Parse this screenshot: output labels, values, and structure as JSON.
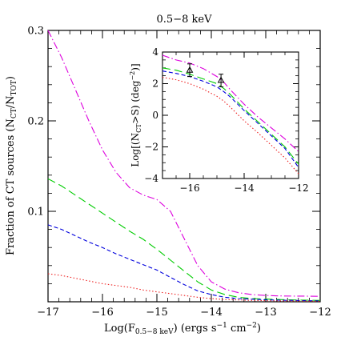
{
  "chart_data": [
    {
      "type": "line",
      "title": "0.5−8 keV",
      "xlabel_main": "Log(F",
      "xlabel_sub": "0.5−8 keV",
      "xlabel_units": ") (ergs s",
      "xlabel_sup1": "−1",
      "xlabel_cm": " cm",
      "xlabel_sup2": "−2",
      "xlabel_end": ")",
      "ylabel_main": "Fraction of CT sources (N",
      "ylabel_sub1": "CT",
      "ylabel_mid": "/N",
      "ylabel_sub2": "TOT",
      "ylabel_end": ")",
      "xlim": [
        -17,
        -12
      ],
      "ylim": [
        0,
        0.3
      ],
      "xticks": [
        -17,
        -16,
        -15,
        -14,
        -13,
        -12
      ],
      "xtick_labels": [
        "−17",
        "−16",
        "−15",
        "−14",
        "−13",
        "−12"
      ],
      "yticks": [
        0.1,
        0.2,
        0.3
      ],
      "ytick_labels": [
        "0.1",
        "0.2",
        "0.3"
      ],
      "series": [
        {
          "style": "dot-dash",
          "color": "#dd00dd",
          "x": [
            -17,
            -16.75,
            -16.5,
            -16.25,
            -16,
            -15.75,
            -15.5,
            -15.25,
            -15,
            -14.75,
            -14.5,
            -14.25,
            -14,
            -13.75,
            -13.5,
            -13.25,
            -13,
            -12.75,
            -12.5,
            -12.25,
            -12
          ],
          "y": [
            0.3,
            0.27,
            0.235,
            0.2,
            0.168,
            0.143,
            0.126,
            0.118,
            0.113,
            0.1,
            0.07,
            0.04,
            0.022,
            0.014,
            0.01,
            0.008,
            0.007,
            0.0065,
            0.0063,
            0.0062,
            0.006
          ]
        },
        {
          "style": "long-dash",
          "color": "#00cc00",
          "x": [
            -17,
            -16.75,
            -16.5,
            -16.25,
            -16,
            -15.75,
            -15.5,
            -15.25,
            -15,
            -14.75,
            -14.5,
            -14.25,
            -14,
            -13.75,
            -13.5,
            -13.25,
            -13,
            -12.75,
            -12.5,
            -12.25,
            -12
          ],
          "y": [
            0.136,
            0.128,
            0.118,
            0.108,
            0.098,
            0.088,
            0.078,
            0.069,
            0.058,
            0.046,
            0.034,
            0.022,
            0.013,
            0.008,
            0.005,
            0.0035,
            0.003,
            0.0025,
            0.002,
            0.0018,
            0.0015
          ]
        },
        {
          "style": "short-dash",
          "color": "#0000dd",
          "x": [
            -17,
            -16.75,
            -16.5,
            -16.25,
            -16,
            -15.75,
            -15.5,
            -15.25,
            -15,
            -14.75,
            -14.5,
            -14.25,
            -14,
            -13.75,
            -13.5,
            -13.25,
            -13,
            -12.75,
            -12.5,
            -12.25,
            -12
          ],
          "y": [
            0.085,
            0.08,
            0.073,
            0.066,
            0.06,
            0.053,
            0.047,
            0.041,
            0.035,
            0.027,
            0.019,
            0.012,
            0.008,
            0.005,
            0.0035,
            0.0028,
            0.0022,
            0.0018,
            0.0015,
            0.0012,
            0.001
          ]
        },
        {
          "style": "dotted",
          "color": "#ee2222",
          "x": [
            -17,
            -16.75,
            -16.5,
            -16.25,
            -16,
            -15.75,
            -15.5,
            -15.25,
            -15,
            -14.75,
            -14.5,
            -14.25,
            -14,
            -13.75,
            -13.5,
            -13.25,
            -13,
            -12.75,
            -12.5,
            -12.25,
            -12
          ],
          "y": [
            0.031,
            0.029,
            0.026,
            0.023,
            0.02,
            0.018,
            0.016,
            0.013,
            0.011,
            0.009,
            0.007,
            0.005,
            0.0035,
            0.0025,
            0.002,
            0.0015,
            0.0012,
            0.001,
            0.0008,
            0.0007,
            0.0006
          ]
        }
      ]
    },
    {
      "type": "line",
      "ylabel_main": "Log[(N",
      "ylabel_sub": "CT",
      "ylabel_mid": ">S) (deg",
      "ylabel_sup": "−2",
      "ylabel_end": ")]",
      "xlim": [
        -17,
        -12
      ],
      "ylim": [
        -4,
        4
      ],
      "xticks": [
        -16,
        -14,
        -12
      ],
      "xtick_labels": [
        "−16",
        "−14",
        "−12"
      ],
      "yticks": [
        -4,
        -2,
        0,
        2,
        4
      ],
      "ytick_labels": [
        "−4",
        "−2",
        "0",
        "2",
        "4"
      ],
      "series": [
        {
          "style": "dot-dash",
          "color": "#dd00dd",
          "x": [
            -17,
            -16.5,
            -16,
            -15.5,
            -15,
            -14.75,
            -14.5,
            -14,
            -13.5,
            -13,
            -12.5,
            -12
          ],
          "y": [
            3.8,
            3.5,
            3.3,
            2.95,
            2.45,
            2.1,
            1.6,
            0.7,
            -0.1,
            -0.8,
            -1.5,
            -2.3
          ]
        },
        {
          "style": "long-dash",
          "color": "#00cc00",
          "x": [
            -17,
            -16.5,
            -16,
            -15.5,
            -15,
            -14.75,
            -14.5,
            -14,
            -13.5,
            -13,
            -12.5,
            -12
          ],
          "y": [
            3.0,
            2.85,
            2.6,
            2.3,
            2.0,
            1.7,
            1.3,
            0.4,
            -0.4,
            -1.2,
            -2.0,
            -3.1
          ]
        },
        {
          "style": "short-dash",
          "color": "#0000dd",
          "x": [
            -17,
            -16.5,
            -16,
            -15.5,
            -15,
            -14.75,
            -14.5,
            -14,
            -13.5,
            -13,
            -12.5,
            -12
          ],
          "y": [
            2.8,
            2.65,
            2.45,
            2.15,
            1.8,
            1.5,
            1.15,
            0.3,
            -0.5,
            -1.3,
            -2.1,
            -3.3
          ]
        },
        {
          "style": "dotted",
          "color": "#ee2222",
          "x": [
            -17,
            -16.5,
            -16,
            -15.5,
            -15,
            -14.75,
            -14.5,
            -14,
            -13.5,
            -13,
            -12.5,
            -12
          ],
          "y": [
            2.4,
            2.25,
            2.0,
            1.65,
            1.2,
            0.9,
            0.5,
            -0.35,
            -1.1,
            -1.9,
            -2.7,
            -3.7
          ]
        }
      ],
      "points": [
        {
          "x": -16.0,
          "y": 2.85,
          "yerr": 0.4
        },
        {
          "x": -14.85,
          "y": 2.2,
          "yerr": 0.4
        }
      ]
    }
  ]
}
